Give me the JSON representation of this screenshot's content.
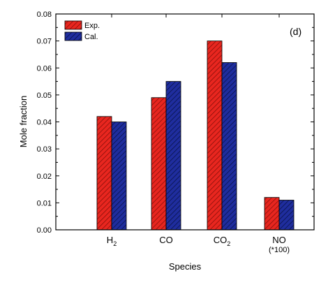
{
  "chart_data": {
    "type": "bar",
    "categories": [
      "H",
      "CO",
      "CO",
      "NO"
    ],
    "category_subscripts": [
      "2",
      "",
      "2",
      ""
    ],
    "category_sublabels": [
      "",
      "",
      "",
      "(*100)"
    ],
    "series": [
      {
        "name": "Exp.",
        "values": [
          0.042,
          0.049,
          0.07,
          0.012
        ],
        "color": "#e8261f"
      },
      {
        "name": "Cal.",
        "values": [
          0.04,
          0.055,
          0.062,
          0.011
        ],
        "color": "#1f2d9e"
      }
    ],
    "title": "",
    "panel_label": "(d)",
    "xlabel": "Species",
    "ylabel": "Mole fraction",
    "ylim": [
      0,
      0.08
    ],
    "yticks": [
      "0.00",
      "0.01",
      "0.02",
      "0.03",
      "0.04",
      "0.05",
      "0.06",
      "0.07",
      "0.08"
    ],
    "legend_position": "top-left",
    "grid": false
  }
}
